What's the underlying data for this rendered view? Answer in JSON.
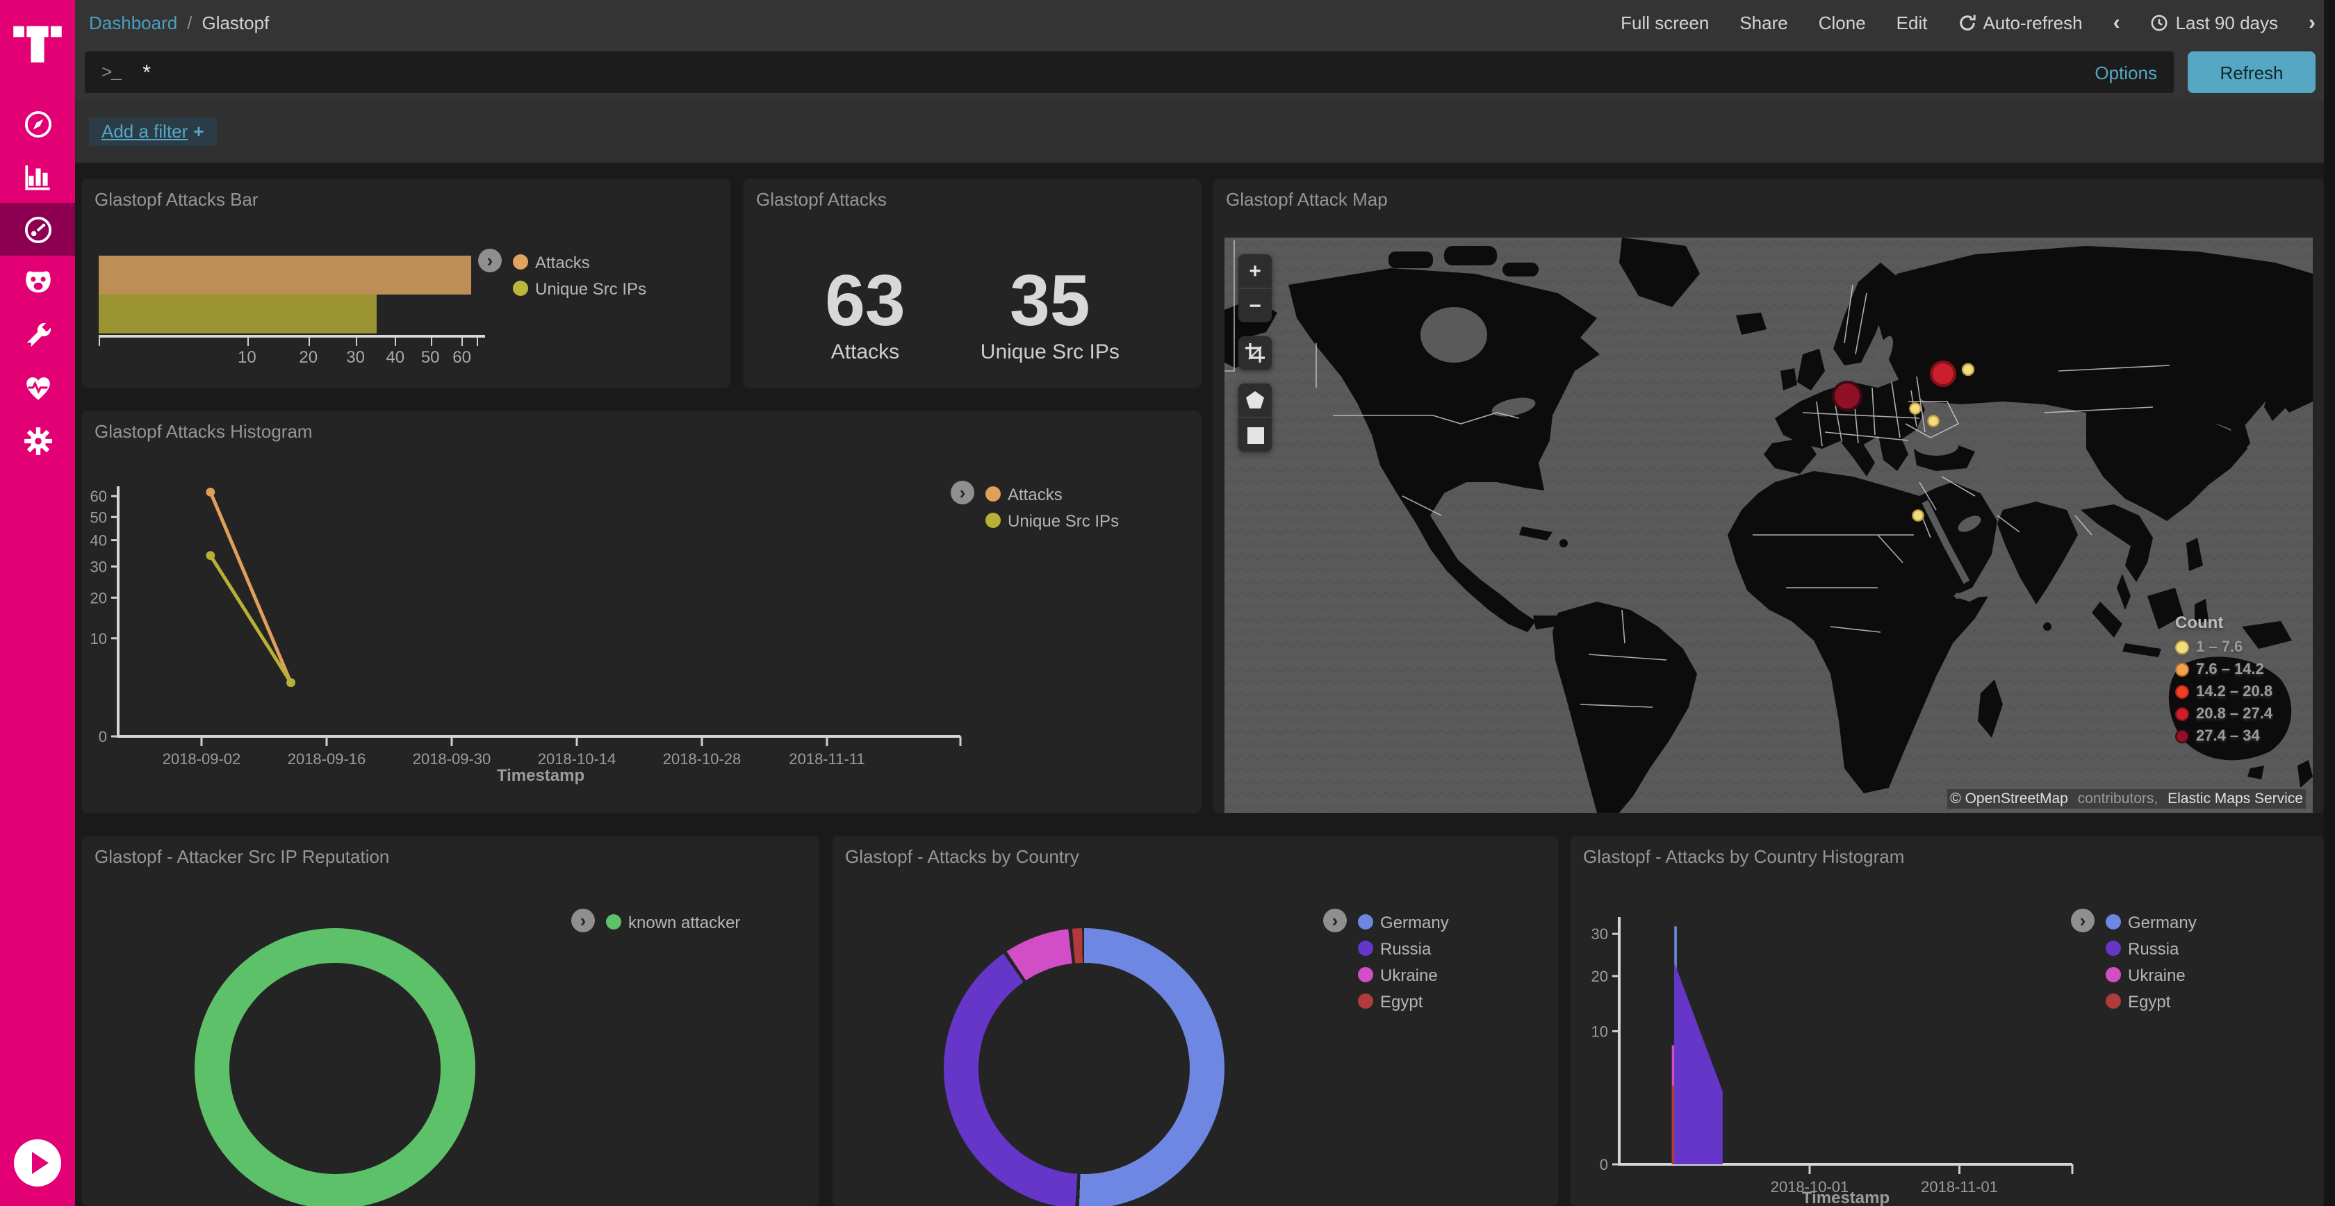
{
  "colors": {
    "accent": "#e20074",
    "accent_active": "#8d0051",
    "teal": "#55a7c4",
    "link_blue": "#4a9ec2",
    "panel_bg": "#242424",
    "page_bg": "#1a1a1a",
    "chrome_bg": "#343434"
  },
  "sidebar": {
    "items": [
      {
        "id": "discover",
        "icon": "compass-icon"
      },
      {
        "id": "visualize",
        "icon": "bar-chart-icon"
      },
      {
        "id": "dashboard",
        "icon": "gauge-icon",
        "active": true
      },
      {
        "id": "timelion",
        "icon": "timelion-face-icon"
      },
      {
        "id": "dev-tools",
        "icon": "wrench-icon"
      },
      {
        "id": "monitoring",
        "icon": "heartbeat-icon"
      },
      {
        "id": "management",
        "icon": "gear-icon"
      }
    ]
  },
  "topbar": {
    "breadcrumb": {
      "root": "Dashboard",
      "divider": "/",
      "current": "Glastopf"
    },
    "menu": [
      "Full screen",
      "Share",
      "Clone",
      "Edit"
    ],
    "auto_refresh": "Auto-refresh",
    "time_prev": "‹",
    "time_label": "Last 90 days",
    "time_next": "›"
  },
  "query_bar": {
    "prompt": ">_",
    "query": "*",
    "options_label": "Options",
    "refresh_label": "Refresh"
  },
  "filter_bar": {
    "add_filter_label": "Add a filter",
    "plus": "+"
  },
  "panels": {
    "bar": {
      "title": "Glastopf Attacks Bar"
    },
    "metric": {
      "title": "Glastopf Attacks",
      "metrics": [
        {
          "value": "63",
          "label": "Attacks"
        },
        {
          "value": "35",
          "label": "Unique Src IPs"
        }
      ]
    },
    "map": {
      "title": "Glastopf Attack Map",
      "attribution": {
        "osm": "© OpenStreetMap",
        "mid": " contributors, ",
        "ems": "Elastic Maps Service"
      }
    },
    "histogram": {
      "title": "Glastopf Attacks Histogram"
    },
    "reputation": {
      "title": "Glastopf - Attacker Src IP Reputation"
    },
    "country": {
      "title": "Glastopf - Attacks by Country"
    },
    "country_hist": {
      "title": "Glastopf - Attacks by Country Histogram"
    }
  },
  "chart_data": [
    {
      "id": "attacks-bar",
      "type": "bar",
      "orientation": "horizontal",
      "scale": "sqrt",
      "xmax": 65,
      "categories": [
        "Attacks",
        "Unique Src IPs"
      ],
      "values": [
        63,
        35
      ],
      "colors": [
        "#bd8e55",
        "#9b9232"
      ],
      "legend_colors": [
        "#e2a35f",
        "#bdb63c"
      ],
      "xticks": [
        10,
        20,
        30,
        40,
        50,
        60
      ]
    },
    {
      "id": "attacks-metric",
      "type": "metric",
      "items": [
        {
          "label": "Attacks",
          "value": 63
        },
        {
          "label": "Unique Src IPs",
          "value": 35
        }
      ]
    },
    {
      "id": "attack-map",
      "type": "map",
      "legend_title": "Count",
      "buckets": [
        {
          "label": "1 – 7.6",
          "color": "#f2dd7f",
          "stroke": "#c3a348"
        },
        {
          "label": "7.6 – 14.2",
          "color": "#f0a14c",
          "stroke": "#b86f2a"
        },
        {
          "label": "14.2 – 20.8",
          "color": "#f23d24",
          "stroke": "#a32415"
        },
        {
          "label": "20.8 – 27.4",
          "color": "#cb1f2c",
          "stroke": "#871018"
        },
        {
          "label": "27.4 – 34",
          "color": "#8e1126",
          "stroke": "#3f0812"
        }
      ],
      "points": [
        {
          "x": 448,
          "y": 114,
          "r": 10,
          "bucket": 4,
          "place": "Germany"
        },
        {
          "x": 517,
          "y": 98,
          "r": 8.5,
          "bucket": 3,
          "place": "Russia"
        },
        {
          "x": 535,
          "y": 95,
          "r": 4,
          "bucket": 0,
          "place": "Russia-east"
        },
        {
          "x": 497,
          "y": 123,
          "r": 3.8,
          "bucket": 0,
          "place": "Ukraine-1"
        },
        {
          "x": 510,
          "y": 132,
          "r": 3.8,
          "bucket": 0,
          "place": "Ukraine-2"
        },
        {
          "x": 499,
          "y": 200,
          "r": 3.8,
          "bucket": 0,
          "place": "Egypt"
        }
      ]
    },
    {
      "id": "attacks-histogram",
      "type": "line",
      "xlabel": "Timestamp",
      "scale": "sqrt",
      "ymax": 65,
      "yticks": [
        0,
        10,
        20,
        30,
        40,
        50,
        60
      ],
      "xticks": [
        "2018-09-02",
        "2018-09-16",
        "2018-09-30",
        "2018-10-14",
        "2018-10-28",
        "2018-11-11"
      ],
      "series": [
        {
          "name": "Attacks",
          "color": "#dfa05c",
          "points": [
            [
              "2018-09-03",
              62
            ],
            [
              "2018-09-12",
              3
            ]
          ]
        },
        {
          "name": "Unique Src IPs",
          "color": "#b9b135",
          "points": [
            [
              "2018-09-03",
              34
            ],
            [
              "2018-09-12",
              3
            ]
          ]
        }
      ]
    },
    {
      "id": "src-ip-reputation",
      "type": "pie",
      "donut": true,
      "labels": [
        "known attacker"
      ],
      "values": [
        63
      ],
      "colors": [
        "#5cc168"
      ]
    },
    {
      "id": "attacks-by-country",
      "type": "pie",
      "donut": true,
      "labels": [
        "Germany",
        "Russia",
        "Ukraine",
        "Egypt"
      ],
      "values": [
        32,
        25,
        5,
        1
      ],
      "colors": [
        "#6e87e2",
        "#6636c9",
        "#d24ec6",
        "#b03a3c"
      ]
    },
    {
      "id": "attacks-by-country-histogram",
      "type": "area",
      "xlabel": "Timestamp",
      "scale": "sqrt",
      "ymax": 33,
      "yticks": [
        0,
        10,
        20,
        30
      ],
      "xticks": [
        "2018-10-01",
        "2018-11-01"
      ],
      "series": [
        {
          "name": "Germany",
          "color": "#6e87e2",
          "render": "spike",
          "points": [
            [
              "2018-09-03",
              32
            ]
          ]
        },
        {
          "name": "Russia",
          "color": "#6636c9",
          "render": "area",
          "points": [
            [
              "2018-09-03",
              23
            ],
            [
              "2018-09-13",
              3
            ]
          ]
        },
        {
          "name": "Ukraine",
          "color": "#d24ec6",
          "render": "spike",
          "points": [
            [
              "2018-09-03",
              8
            ]
          ]
        },
        {
          "name": "Egypt",
          "color": "#b03a3c",
          "render": "spike",
          "points": [
            [
              "2018-09-03",
              3.5
            ]
          ]
        }
      ]
    }
  ]
}
